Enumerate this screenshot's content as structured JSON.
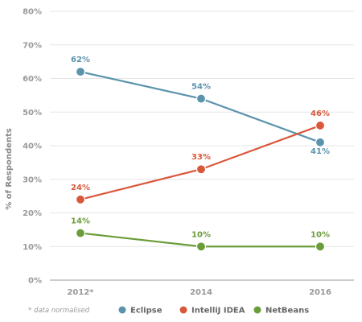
{
  "chart_data": {
    "type": "line",
    "categories": [
      "2012*",
      "2014",
      "2016"
    ],
    "ylabel": "% of Respondents",
    "yticks": [
      "0%",
      "10%",
      "20%",
      "30%",
      "40%",
      "50%",
      "60%",
      "70%",
      "80%"
    ],
    "ylim": [
      0,
      80
    ],
    "grid": true,
    "legend_position": "bottom",
    "note": "* data normalised",
    "series": [
      {
        "name": "Eclipse",
        "color": "#5b93ad",
        "values": [
          62,
          54,
          41
        ],
        "labels": [
          "62%",
          "54%",
          "41%"
        ]
      },
      {
        "name": "IntelliJ IDEA",
        "color": "#d9573a",
        "values": [
          24,
          33,
          46
        ],
        "labels": [
          "24%",
          "33%",
          "46%"
        ]
      },
      {
        "name": "NetBeans",
        "color": "#6b9c3a",
        "values": [
          14,
          10,
          10
        ],
        "labels": [
          "14%",
          "10%",
          "10%"
        ]
      }
    ]
  }
}
